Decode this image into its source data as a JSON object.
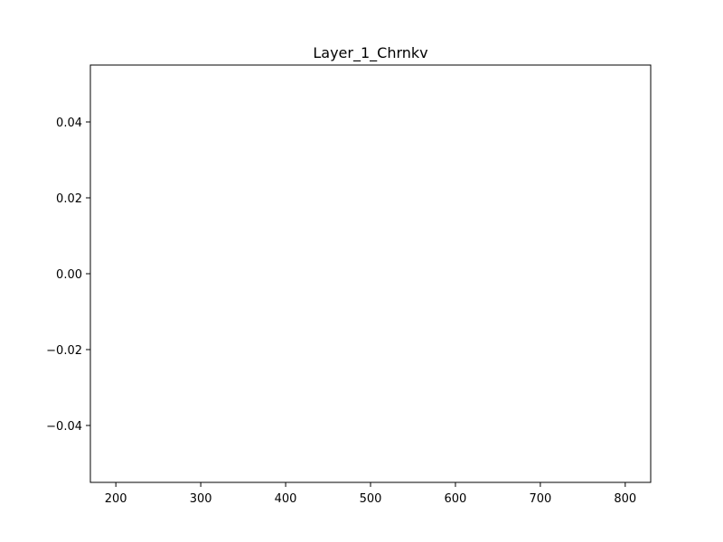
{
  "chart_data": {
    "type": "line",
    "title": "Layer_1_Chrnkv",
    "xlabel": "",
    "ylabel": "",
    "xlim": [
      170,
      830
    ],
    "ylim": [
      -0.055,
      0.055
    ],
    "x_ticks": [
      200,
      300,
      400,
      500,
      600,
      700,
      800
    ],
    "y_ticks": [
      -0.04,
      -0.02,
      0.0,
      0.02,
      0.04
    ],
    "x_tick_labels": [
      "200",
      "300",
      "400",
      "500",
      "600",
      "700",
      "800"
    ],
    "y_tick_labels": [
      "−0.04",
      "−0.02",
      "0.00",
      "0.02",
      "0.04"
    ],
    "grid": false,
    "series": []
  },
  "colors": {
    "axis": "#000000",
    "background": "#ffffff"
  }
}
